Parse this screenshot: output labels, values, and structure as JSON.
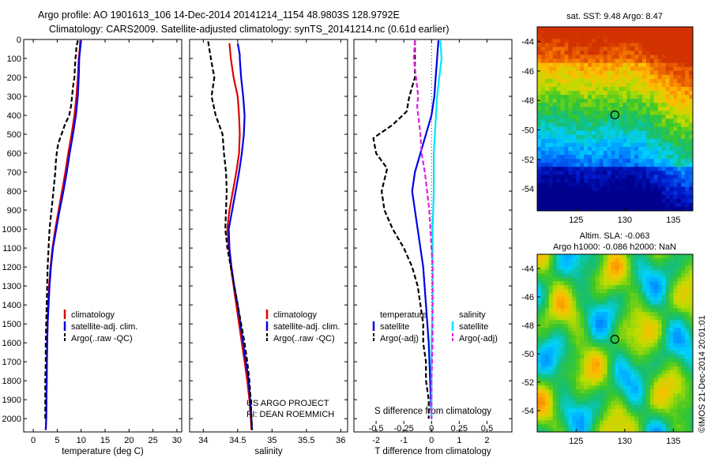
{
  "header": {
    "line1": "Argo profile: AO 1901613_106 14-Dec-2014 20141214_1154 48.9803S 128.9792E",
    "line2": "Climatology: CARS2009. Satellite-adjusted climatology: synTS_20141214.nc (0.61d earlier)"
  },
  "colors": {
    "climatology": "#e00000",
    "satellite": "#0000e6",
    "argo": "#000000",
    "satellite_salinity": "#00e5ff",
    "argo_salinity": "#e020e0"
  },
  "chart_data": [
    {
      "id": "temperature",
      "type": "line",
      "xlabel": "temperature (deg C)",
      "ylabel": "",
      "xlim": [
        -2,
        31
      ],
      "ylim": [
        2070,
        0
      ],
      "xticks": [
        0,
        5,
        10,
        15,
        20,
        25,
        30
      ],
      "yticks": [
        0,
        100,
        200,
        300,
        400,
        500,
        600,
        700,
        800,
        900,
        1000,
        1100,
        1200,
        1300,
        1400,
        1500,
        1600,
        1700,
        1800,
        1900,
        2000
      ],
      "legend": {
        "position": "lower-center",
        "entries": [
          "climatology",
          "satellite-adj. clim.",
          "Argo(..raw -QC)"
        ]
      },
      "series": [
        {
          "name": "climatology",
          "color": "#e00000",
          "dash": false,
          "points": [
            [
              9.8,
              5
            ],
            [
              9.7,
              50
            ],
            [
              9.5,
              100
            ],
            [
              9.3,
              200
            ],
            [
              9.0,
              300
            ],
            [
              8.6,
              400
            ],
            [
              8.0,
              500
            ],
            [
              7.3,
              600
            ],
            [
              6.7,
              700
            ],
            [
              6.0,
              800
            ],
            [
              5.3,
              900
            ],
            [
              4.6,
              1000
            ],
            [
              4.0,
              1100
            ],
            [
              3.6,
              1200
            ],
            [
              3.3,
              1300
            ],
            [
              3.1,
              1400
            ],
            [
              3.0,
              1500
            ],
            [
              2.9,
              1600
            ],
            [
              2.8,
              1800
            ],
            [
              2.7,
              2000
            ],
            [
              2.6,
              2060
            ]
          ]
        },
        {
          "name": "satellite-adj. clim.",
          "color": "#0000e6",
          "dash": false,
          "points": [
            [
              10.0,
              5
            ],
            [
              9.8,
              50
            ],
            [
              9.6,
              100
            ],
            [
              9.5,
              200
            ],
            [
              9.3,
              300
            ],
            [
              8.9,
              400
            ],
            [
              8.3,
              500
            ],
            [
              7.6,
              600
            ],
            [
              7.0,
              700
            ],
            [
              6.3,
              800
            ],
            [
              5.5,
              900
            ],
            [
              4.8,
              1000
            ],
            [
              4.1,
              1100
            ],
            [
              3.7,
              1200
            ],
            [
              3.4,
              1300
            ],
            [
              3.2,
              1400
            ],
            [
              3.0,
              1500
            ],
            [
              2.9,
              1600
            ],
            [
              2.8,
              1800
            ],
            [
              2.7,
              2000
            ],
            [
              2.6,
              2060
            ]
          ]
        },
        {
          "name": "Argo(..raw -QC)",
          "color": "#000000",
          "dash": true,
          "points": [
            [
              9.3,
              5
            ],
            [
              9.0,
              40
            ],
            [
              8.9,
              80
            ],
            [
              8.8,
              100
            ],
            [
              8.7,
              150
            ],
            [
              8.6,
              200
            ],
            [
              8.3,
              250
            ],
            [
              8.1,
              300
            ],
            [
              7.9,
              350
            ],
            [
              7.5,
              400
            ],
            [
              6.6,
              450
            ],
            [
              5.9,
              500
            ],
            [
              5.2,
              550
            ],
            [
              4.9,
              600
            ],
            [
              4.7,
              650
            ],
            [
              4.6,
              700
            ],
            [
              4.4,
              750
            ],
            [
              4.2,
              800
            ],
            [
              4.0,
              850
            ],
            [
              3.8,
              900
            ],
            [
              3.6,
              950
            ],
            [
              3.4,
              1000
            ],
            [
              3.2,
              1100
            ],
            [
              3.0,
              1200
            ],
            [
              2.9,
              1300
            ],
            [
              2.8,
              1400
            ],
            [
              2.7,
              1500
            ],
            [
              2.6,
              1600
            ],
            [
              2.6,
              1700
            ],
            [
              2.5,
              1800
            ],
            [
              2.5,
              1900
            ],
            [
              2.5,
              2000
            ]
          ]
        }
      ]
    },
    {
      "id": "salinity",
      "type": "line",
      "xlabel": "salinity",
      "ylabel": "",
      "xlim": [
        33.8,
        36.1
      ],
      "ylim": [
        2070,
        0
      ],
      "xticks": [
        34,
        34.5,
        35,
        35.5,
        36
      ],
      "legend": {
        "position": "lower-center",
        "entries": [
          "climatology",
          "satellite-adj. clim.",
          "Argo(..raw -QC)"
        ]
      },
      "annotations": [
        "US ARGO PROJECT",
        "PI: DEAN ROEMMICH"
      ],
      "series": [
        {
          "name": "climatology",
          "color": "#e00000",
          "dash": false,
          "points": [
            [
              34.38,
              20
            ],
            [
              34.4,
              100
            ],
            [
              34.44,
              200
            ],
            [
              34.5,
              300
            ],
            [
              34.52,
              400
            ],
            [
              34.53,
              500
            ],
            [
              34.52,
              600
            ],
            [
              34.48,
              700
            ],
            [
              34.43,
              800
            ],
            [
              34.38,
              900
            ],
            [
              34.35,
              1000
            ],
            [
              34.37,
              1100
            ],
            [
              34.4,
              1200
            ],
            [
              34.44,
              1300
            ],
            [
              34.48,
              1400
            ],
            [
              34.52,
              1500
            ],
            [
              34.56,
              1600
            ],
            [
              34.6,
              1700
            ],
            [
              34.64,
              1800
            ],
            [
              34.67,
              1900
            ],
            [
              34.69,
              2000
            ],
            [
              34.7,
              2060
            ]
          ]
        },
        {
          "name": "satellite-adj. clim.",
          "color": "#0000e6",
          "dash": false,
          "points": [
            [
              34.5,
              20
            ],
            [
              34.53,
              80
            ],
            [
              34.53,
              100
            ],
            [
              34.55,
              200
            ],
            [
              34.58,
              300
            ],
            [
              34.6,
              400
            ],
            [
              34.59,
              500
            ],
            [
              34.56,
              600
            ],
            [
              34.52,
              700
            ],
            [
              34.47,
              800
            ],
            [
              34.42,
              900
            ],
            [
              34.37,
              1000
            ],
            [
              34.38,
              1100
            ],
            [
              34.41,
              1200
            ],
            [
              34.45,
              1300
            ],
            [
              34.5,
              1400
            ],
            [
              34.54,
              1500
            ],
            [
              34.58,
              1600
            ],
            [
              34.62,
              1700
            ],
            [
              34.66,
              1800
            ],
            [
              34.68,
              1900
            ],
            [
              34.7,
              2000
            ],
            [
              34.71,
              2060
            ]
          ]
        },
        {
          "name": "Argo(..raw -QC)",
          "color": "#000000",
          "dash": true,
          "points": [
            [
              34.07,
              10
            ],
            [
              34.1,
              80
            ],
            [
              34.12,
              120
            ],
            [
              34.16,
              200
            ],
            [
              34.12,
              300
            ],
            [
              34.18,
              400
            ],
            [
              34.28,
              500
            ],
            [
              34.3,
              600
            ],
            [
              34.33,
              700
            ],
            [
              34.34,
              800
            ],
            [
              34.33,
              900
            ],
            [
              34.32,
              1000
            ],
            [
              34.35,
              1100
            ],
            [
              34.4,
              1200
            ],
            [
              34.45,
              1300
            ],
            [
              34.5,
              1400
            ],
            [
              34.55,
              1500
            ],
            [
              34.6,
              1600
            ],
            [
              34.64,
              1700
            ],
            [
              34.67,
              1800
            ],
            [
              34.69,
              1900
            ],
            [
              34.7,
              2000
            ],
            [
              34.71,
              2060
            ]
          ]
        }
      ]
    },
    {
      "id": "difference",
      "type": "line",
      "xlabel": "T difference from climatology",
      "xlabel_top": "S difference from climatology",
      "xlim": [
        -2.8,
        2.9
      ],
      "ylim": [
        2070,
        0
      ],
      "xticks": [
        -2,
        -1,
        0,
        1,
        2
      ],
      "xtick_labels": [
        "-2",
        "-1",
        "0",
        "1",
        "2"
      ],
      "s_ticks": [
        -0.5,
        -0.25,
        0,
        0.25,
        0.5
      ],
      "s_tick_labels": [
        "-0.5",
        "-0.25",
        "0",
        "0.25",
        "0.5"
      ],
      "zero_line": true,
      "legend": {
        "position": "lower-center",
        "entries": [
          "temperature",
          "satellite",
          "Argo(-adj)",
          "salinity",
          "satellite",
          "Argo(-adj)"
        ]
      },
      "series": [
        {
          "name": "satellite",
          "group": "temperature",
          "color": "#0000e6",
          "dash": false,
          "points": [
            [
              0.25,
              5
            ],
            [
              0.2,
              100
            ],
            [
              0.15,
              200
            ],
            [
              0.1,
              300
            ],
            [
              0.0,
              400
            ],
            [
              -0.2,
              500
            ],
            [
              -0.4,
              600
            ],
            [
              -0.6,
              700
            ],
            [
              -0.7,
              800
            ],
            [
              -0.6,
              900
            ],
            [
              -0.5,
              1000
            ],
            [
              -0.4,
              1100
            ],
            [
              -0.3,
              1200
            ],
            [
              -0.2,
              1400
            ],
            [
              -0.1,
              1600
            ],
            [
              -0.05,
              1800
            ],
            [
              0.0,
              2000
            ]
          ]
        },
        {
          "name": "Argo(-adj)",
          "group": "temperature",
          "color": "#000000",
          "dash": true,
          "points": [
            [
              -0.6,
              5
            ],
            [
              -0.6,
              100
            ],
            [
              -0.6,
              200
            ],
            [
              -0.8,
              300
            ],
            [
              -0.9,
              380
            ],
            [
              -1.4,
              450
            ],
            [
              -2.1,
              520
            ],
            [
              -2.0,
              600
            ],
            [
              -1.6,
              680
            ],
            [
              -1.8,
              800
            ],
            [
              -1.7,
              900
            ],
            [
              -1.4,
              1000
            ],
            [
              -1.0,
              1100
            ],
            [
              -0.7,
              1200
            ],
            [
              -0.5,
              1300
            ],
            [
              -0.4,
              1400
            ],
            [
              -0.3,
              1500
            ],
            [
              -0.3,
              1600
            ],
            [
              -0.2,
              1700
            ],
            [
              -0.2,
              1800
            ],
            [
              -0.1,
              1900
            ],
            [
              -0.1,
              2000
            ]
          ]
        },
        {
          "name": "satellite",
          "group": "salinity",
          "color": "#00e5ff",
          "dash": false,
          "points": [
            [
              0.08,
              5
            ],
            [
              0.09,
              100
            ],
            [
              0.07,
              200
            ],
            [
              0.05,
              300
            ],
            [
              0.04,
              400
            ],
            [
              0.03,
              500
            ],
            [
              0.02,
              600
            ],
            [
              0.02,
              800
            ],
            [
              0.01,
              1000
            ],
            [
              0.01,
              1200
            ],
            [
              0.01,
              1400
            ],
            [
              0.0,
              1600
            ],
            [
              0.0,
              1800
            ],
            [
              0.0,
              2000
            ]
          ]
        },
        {
          "name": "Argo(-adj)",
          "group": "salinity",
          "color": "#e020e0",
          "dash": true,
          "points": [
            [
              -0.15,
              5
            ],
            [
              -0.16,
              100
            ],
            [
              -0.14,
              200
            ],
            [
              -0.12,
              300
            ],
            [
              -0.13,
              350
            ],
            [
              -0.12,
              400
            ],
            [
              -0.1,
              500
            ],
            [
              -0.09,
              600
            ],
            [
              -0.06,
              700
            ],
            [
              -0.04,
              800
            ],
            [
              -0.02,
              900
            ],
            [
              -0.01,
              1000
            ],
            [
              0.0,
              1100
            ],
            [
              0.01,
              1200
            ],
            [
              0.01,
              1400
            ],
            [
              0.01,
              1600
            ],
            [
              0.0,
              1800
            ],
            [
              0.0,
              2000
            ]
          ]
        }
      ]
    },
    {
      "id": "sst-map",
      "type": "heatmap",
      "title": "sat. SST: 9.48 Argo: 8.47",
      "xlim": [
        121,
        137
      ],
      "ylim": [
        -55.5,
        -43
      ],
      "xticks": [
        125,
        130,
        135
      ],
      "yticks": [
        -44,
        -46,
        -48,
        -50,
        -52,
        -54
      ],
      "marker": {
        "lon": 128.98,
        "lat": -48.98
      }
    },
    {
      "id": "sla-map",
      "type": "heatmap",
      "title": "Altim. SLA: -0.063",
      "subtitle": "Argo h1000: -0.086 h2000: NaN",
      "xlim": [
        121,
        137
      ],
      "ylim": [
        -55.5,
        -43
      ],
      "xticks": [
        125,
        130,
        135
      ],
      "yticks": [
        -44,
        -46,
        -48,
        -50,
        -52,
        -54
      ],
      "marker": {
        "lon": 128.98,
        "lat": -48.98
      }
    }
  ],
  "footer": {
    "stamp": "©IMOS 21-Dec-2014 20:01:01"
  }
}
